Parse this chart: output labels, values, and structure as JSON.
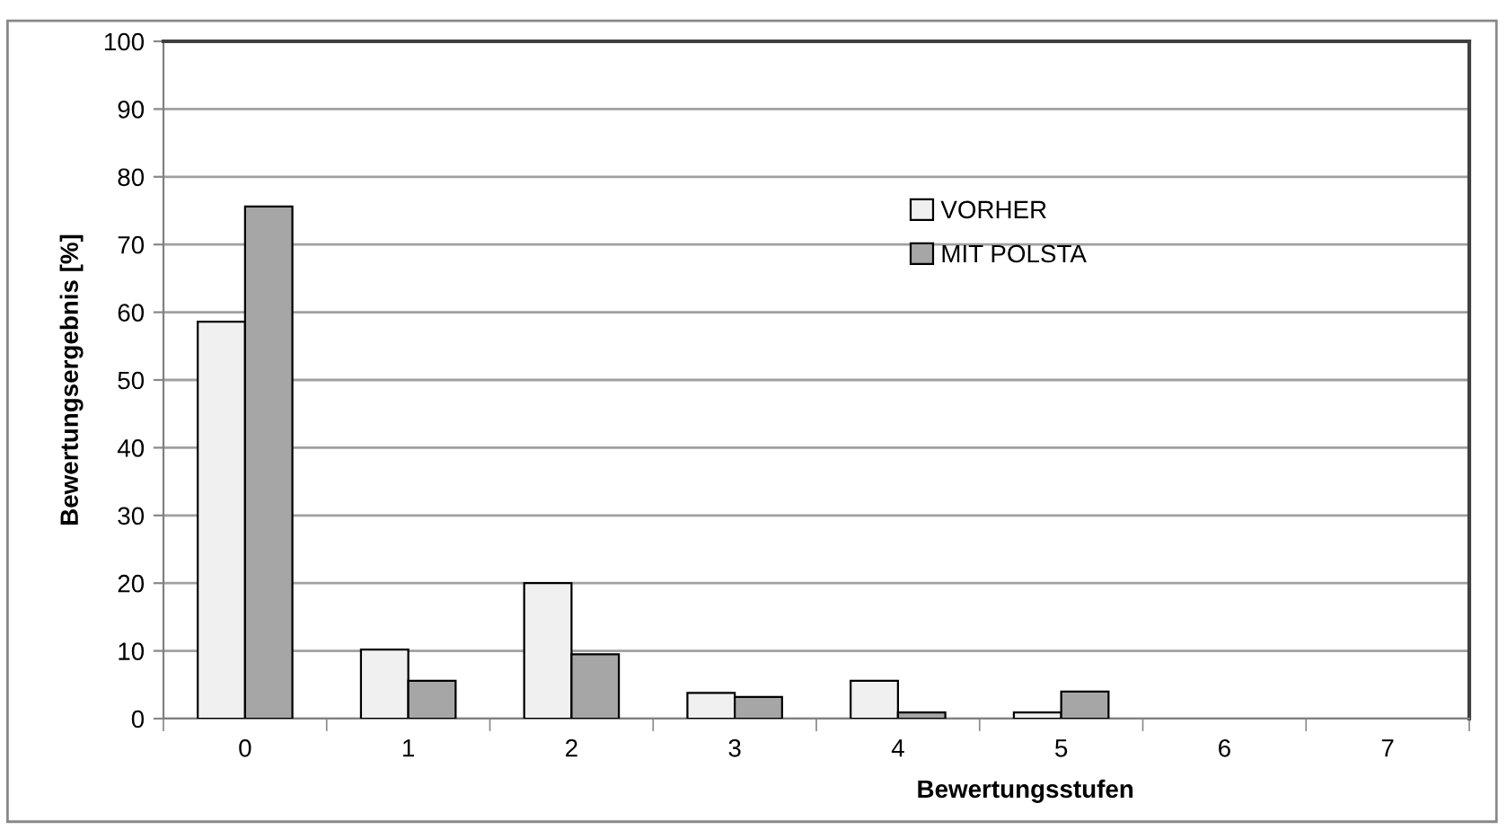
{
  "chart_data": {
    "type": "bar",
    "xlabel": "Bewertungsstufen",
    "ylabel": "Bewertungsergebnis [%]",
    "categories": [
      "0",
      "1",
      "2",
      "3",
      "4",
      "5",
      "6",
      "7"
    ],
    "series": [
      {
        "name": "VORHER",
        "color": "#f0f0f0",
        "values": [
          58.6,
          10.2,
          20.0,
          3.8,
          5.6,
          0.9,
          null,
          null
        ]
      },
      {
        "name": "MIT POLSTA",
        "color": "#a6a6a6",
        "values": [
          75.6,
          5.6,
          9.5,
          3.2,
          0.9,
          4.0,
          null,
          null
        ]
      }
    ],
    "ylim": [
      0,
      100
    ],
    "yticks": [
      0,
      10,
      20,
      30,
      40,
      50,
      60,
      70,
      80,
      90,
      100
    ],
    "grid": "y",
    "legend": "top"
  }
}
